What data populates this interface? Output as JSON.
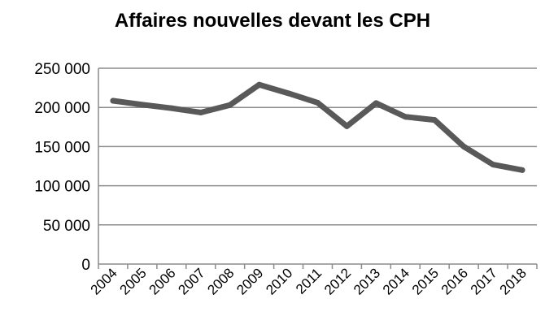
{
  "chart_data": {
    "type": "line",
    "title": "Affaires nouvelles devant les CPH",
    "xlabel": "",
    "ylabel": "",
    "categories": [
      "2004",
      "2005",
      "2006",
      "2007",
      "2008",
      "2009",
      "2010",
      "2011",
      "2012",
      "2013",
      "2014",
      "2015",
      "2016",
      "2017",
      "2018"
    ],
    "series": [
      {
        "values": [
          208500,
          203500,
          199000,
          193500,
          203000,
          229000,
          218000,
          206000,
          176000,
          205500,
          188000,
          184000,
          150000,
          127000,
          120000
        ]
      }
    ],
    "ylim": [
      0,
      250000
    ],
    "y_ticks": [
      0,
      50000,
      100000,
      150000,
      200000,
      250000
    ],
    "y_tick_labels": [
      "0",
      "50 000",
      "100 000",
      "150 000",
      "200 000",
      "250 000"
    ],
    "grid": true,
    "legend": "none",
    "colors": {
      "line": "#595959",
      "grid": "#8c8c8c",
      "axis": "#8c8c8c"
    }
  }
}
